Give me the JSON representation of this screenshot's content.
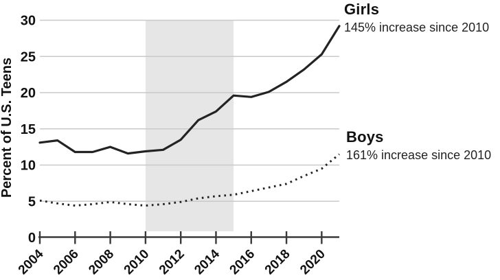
{
  "chart_data": {
    "type": "line",
    "title": "",
    "xlabel": "",
    "ylabel": "Percent of U.S. Teens",
    "x": [
      2004,
      2005,
      2006,
      2007,
      2008,
      2009,
      2010,
      2011,
      2012,
      2013,
      2014,
      2015,
      2016,
      2017,
      2018,
      2019,
      2020,
      2021
    ],
    "x_tick_labels": [
      "2004",
      "2006",
      "2008",
      "2010",
      "2012",
      "2014",
      "2016",
      "2018",
      "2020"
    ],
    "y_ticks": [
      "0",
      "5",
      "10",
      "15",
      "20",
      "25",
      "30"
    ],
    "ylim": [
      0,
      30
    ],
    "xlim": [
      2004,
      2021
    ],
    "grid": "horizontal",
    "legend_position": "right-annotations",
    "shaded_region": {
      "x_start": 2010,
      "x_end": 2015
    },
    "series": [
      {
        "name": "Girls",
        "annotation": "145% increase since 2010",
        "line_style": "solid",
        "values": [
          13.1,
          13.4,
          11.8,
          11.8,
          12.5,
          11.6,
          11.9,
          12.1,
          13.5,
          16.2,
          17.4,
          19.6,
          19.4,
          20.1,
          21.5,
          23.2,
          25.3,
          29.2
        ]
      },
      {
        "name": "Boys",
        "annotation": "161% increase since 2010",
        "line_style": "dotted",
        "values": [
          5.1,
          4.7,
          4.4,
          4.6,
          4.9,
          4.6,
          4.4,
          4.6,
          4.9,
          5.4,
          5.7,
          5.9,
          6.4,
          6.9,
          7.4,
          8.5,
          9.5,
          11.5
        ]
      }
    ],
    "colors": {
      "line": "#232323",
      "grid": "#c9c9c9",
      "axis": "#3a3a3a",
      "text": "#111111",
      "shade": "#e6e6e6",
      "background": "#ffffff"
    }
  }
}
